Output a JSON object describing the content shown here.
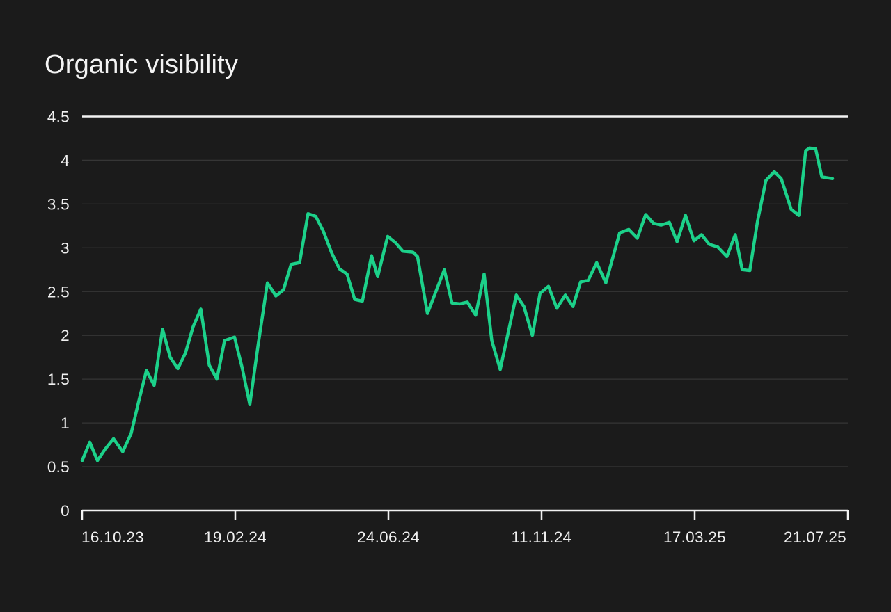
{
  "header": {
    "title": "Organic visibility"
  },
  "colors": {
    "background": "#1b1b1b",
    "text": "#f0f0f0",
    "gridline": "#363636",
    "axis_line": "#f2f2f2",
    "series_line": "#1cd18a"
  },
  "chart_data": {
    "type": "line",
    "title": "Organic visibility",
    "xlabel": "",
    "ylabel": "",
    "legend": "none",
    "grid": "horizontal",
    "y_axis": {
      "range": [
        0,
        4.5
      ],
      "tick_labels": [
        "0",
        "0.5",
        "1",
        "1.5",
        "2",
        "2.5",
        "3",
        "3.5",
        "4",
        "4.5"
      ],
      "tick_values": [
        0,
        0.5,
        1,
        1.5,
        2,
        2.5,
        3,
        3.5,
        4,
        4.5
      ]
    },
    "x_axis": {
      "tick_labels": [
        "16.10.23",
        "19.02.24",
        "24.06.24",
        "11.11.24",
        "17.03.25",
        "21.07.25"
      ],
      "tick_positions": [
        0,
        0.2,
        0.4,
        0.6,
        0.8,
        1.0
      ]
    },
    "series": [
      {
        "name": "Organic visibility",
        "color": "#1cd18a",
        "points": [
          [
            0.0,
            0.57
          ],
          [
            0.01,
            0.78
          ],
          [
            0.02,
            0.57
          ],
          [
            0.03,
            0.7
          ],
          [
            0.041,
            0.82
          ],
          [
            0.053,
            0.67
          ],
          [
            0.064,
            0.88
          ],
          [
            0.074,
            1.25
          ],
          [
            0.084,
            1.6
          ],
          [
            0.094,
            1.43
          ],
          [
            0.105,
            2.07
          ],
          [
            0.115,
            1.75
          ],
          [
            0.125,
            1.62
          ],
          [
            0.135,
            1.8
          ],
          [
            0.145,
            2.1
          ],
          [
            0.155,
            2.3
          ],
          [
            0.166,
            1.66
          ],
          [
            0.176,
            1.5
          ],
          [
            0.186,
            1.94
          ],
          [
            0.199,
            1.98
          ],
          [
            0.209,
            1.63
          ],
          [
            0.219,
            1.21
          ],
          [
            0.23,
            1.9
          ],
          [
            0.242,
            2.6
          ],
          [
            0.253,
            2.45
          ],
          [
            0.263,
            2.52
          ],
          [
            0.273,
            2.81
          ],
          [
            0.284,
            2.83
          ],
          [
            0.295,
            3.39
          ],
          [
            0.305,
            3.36
          ],
          [
            0.315,
            3.19
          ],
          [
            0.326,
            2.94
          ],
          [
            0.336,
            2.76
          ],
          [
            0.346,
            2.7
          ],
          [
            0.356,
            2.41
          ],
          [
            0.366,
            2.39
          ],
          [
            0.378,
            2.91
          ],
          [
            0.386,
            2.67
          ],
          [
            0.399,
            3.13
          ],
          [
            0.409,
            3.06
          ],
          [
            0.419,
            2.96
          ],
          [
            0.432,
            2.95
          ],
          [
            0.438,
            2.9
          ],
          [
            0.451,
            2.25
          ],
          [
            0.473,
            2.75
          ],
          [
            0.483,
            2.37
          ],
          [
            0.493,
            2.36
          ],
          [
            0.503,
            2.38
          ],
          [
            0.514,
            2.23
          ],
          [
            0.525,
            2.7
          ],
          [
            0.535,
            1.94
          ],
          [
            0.546,
            1.61
          ],
          [
            0.567,
            2.46
          ],
          [
            0.577,
            2.33
          ],
          [
            0.588,
            2.0
          ],
          [
            0.598,
            2.48
          ],
          [
            0.609,
            2.56
          ],
          [
            0.62,
            2.31
          ],
          [
            0.631,
            2.46
          ],
          [
            0.641,
            2.33
          ],
          [
            0.651,
            2.61
          ],
          [
            0.661,
            2.63
          ],
          [
            0.672,
            2.83
          ],
          [
            0.684,
            2.6
          ],
          [
            0.702,
            3.17
          ],
          [
            0.714,
            3.21
          ],
          [
            0.725,
            3.11
          ],
          [
            0.736,
            3.38
          ],
          [
            0.746,
            3.28
          ],
          [
            0.756,
            3.26
          ],
          [
            0.767,
            3.29
          ],
          [
            0.777,
            3.07
          ],
          [
            0.788,
            3.37
          ],
          [
            0.799,
            3.08
          ],
          [
            0.809,
            3.15
          ],
          [
            0.819,
            3.04
          ],
          [
            0.83,
            3.01
          ],
          [
            0.842,
            2.9
          ],
          [
            0.853,
            3.15
          ],
          [
            0.862,
            2.75
          ],
          [
            0.872,
            2.74
          ],
          [
            0.882,
            3.3
          ],
          [
            0.893,
            3.77
          ],
          [
            0.904,
            3.87
          ],
          [
            0.913,
            3.79
          ],
          [
            0.926,
            3.44
          ],
          [
            0.936,
            3.37
          ],
          [
            0.945,
            4.11
          ],
          [
            0.95,
            4.14
          ],
          [
            0.958,
            4.13
          ],
          [
            0.966,
            3.81
          ],
          [
            0.98,
            3.79
          ]
        ]
      }
    ]
  }
}
